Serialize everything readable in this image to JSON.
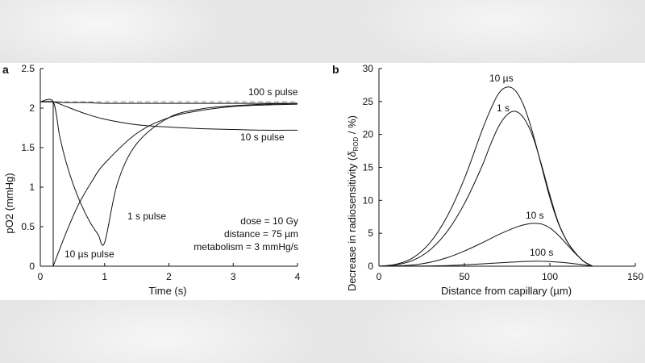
{
  "colors": {
    "line": "#111111",
    "dashed": "#888888",
    "figure_bg": "#ffffff"
  },
  "chart_data": [
    {
      "panel_label": "a",
      "type": "line",
      "xlabel": "Time (s)",
      "ylabel": "pO2 (mmHg)",
      "xlim": [
        0,
        4
      ],
      "ylim": [
        0,
        2.5
      ],
      "xticks": [
        "0",
        "1",
        "2",
        "3",
        "4"
      ],
      "xtick_values": [
        0,
        1,
        2,
        3,
        4
      ],
      "yticks": [
        "0",
        "0.5",
        "1",
        "1.5",
        "2",
        "2.5"
      ],
      "ytick_values": [
        0,
        0.5,
        1,
        1.5,
        2,
        2.5
      ],
      "annotations": [
        "dose = 10 Gy",
        "distance = 75 µm",
        "metabolism = 3 mmHg/s"
      ],
      "series": [
        {
          "name": "100 s pulse",
          "dashed": true,
          "x": [
            0,
            4
          ],
          "y": [
            2.08,
            2.08
          ]
        },
        {
          "name": "100 s pulse",
          "dashed": false,
          "x": [
            0,
            0.2,
            0.4,
            0.7,
            1.0,
            1.5,
            2.0,
            3.0,
            4.0
          ],
          "y": [
            2.08,
            2.08,
            2.07,
            2.07,
            2.06,
            2.06,
            2.06,
            2.06,
            2.06
          ]
        },
        {
          "name": "10 s pulse",
          "dashed": false,
          "x": [
            0,
            0.2,
            0.4,
            0.7,
            1.0,
            1.5,
            2.0,
            2.5,
            3.0,
            3.5,
            4.0
          ],
          "y": [
            2.08,
            2.08,
            2.02,
            1.93,
            1.86,
            1.79,
            1.76,
            1.74,
            1.73,
            1.72,
            1.72
          ]
        },
        {
          "name": "1 s pulse",
          "dashed": false,
          "x": [
            0,
            0.2,
            0.3,
            0.4,
            0.5,
            0.6,
            0.7,
            0.8,
            0.9,
            1.0,
            1.2,
            1.5,
            2.0,
            2.5,
            3.0,
            3.5,
            4.0
          ],
          "y": [
            2.08,
            2.08,
            1.65,
            1.32,
            1.06,
            0.85,
            0.67,
            0.52,
            0.4,
            0.3,
            1.05,
            1.55,
            1.88,
            1.99,
            2.03,
            2.05,
            2.06
          ]
        },
        {
          "name": "10 µs pulse",
          "dashed": false,
          "x": [
            0,
            0.2,
            0.2,
            0.4,
            0.6,
            0.8,
            1.0,
            1.5,
            2.0,
            2.5,
            3.0,
            3.5,
            4.0
          ],
          "y": [
            2.08,
            2.08,
            0.0,
            0.42,
            0.79,
            1.07,
            1.3,
            1.68,
            1.88,
            1.97,
            2.02,
            2.04,
            2.05
          ]
        }
      ],
      "series_labels": [
        "100 s pulse",
        "10 s pulse",
        "1 s pulse",
        "10 µs pulse"
      ]
    },
    {
      "panel_label": "b",
      "type": "line",
      "xlabel": "Distance from capillary (µm)",
      "ylabel_prefix": "Decrease in radiosensitivity (",
      "ylabel_symbol": "δ",
      "ylabel_subscript": "ROD",
      "ylabel_suffix": " / %)",
      "xlim": [
        0,
        150
      ],
      "ylim": [
        0,
        30
      ],
      "xticks": [
        "0",
        "50",
        "100",
        "150"
      ],
      "xtick_values": [
        0,
        50,
        100,
        150
      ],
      "yticks": [
        "0",
        "5",
        "10",
        "15",
        "20",
        "25",
        "30"
      ],
      "ytick_values": [
        0,
        5,
        10,
        15,
        20,
        25,
        30
      ],
      "series": [
        {
          "name": "10 µs",
          "x": [
            0,
            10,
            20,
            30,
            40,
            50,
            60,
            65,
            70,
            75,
            80,
            85,
            90,
            95,
            100,
            105,
            110,
            115,
            120,
            125
          ],
          "y": [
            0,
            0.3,
            1.3,
            3.6,
            7.6,
            13.3,
            20.4,
            23.6,
            26.2,
            27.2,
            26.6,
            24.2,
            20.2,
            15.3,
            10.4,
            6.5,
            3.8,
            2.0,
            0.7,
            0
          ]
        },
        {
          "name": "1 s",
          "x": [
            0,
            10,
            20,
            30,
            40,
            50,
            60,
            65,
            70,
            75,
            80,
            85,
            90,
            95,
            100,
            105,
            110,
            115,
            120,
            125
          ],
          "y": [
            0,
            0.2,
            0.9,
            2.5,
            5.3,
            9.5,
            15.0,
            18.3,
            21.2,
            23.0,
            23.5,
            22.4,
            19.7,
            15.5,
            10.8,
            6.6,
            3.8,
            2.0,
            0.7,
            0
          ]
        },
        {
          "name": "10 s",
          "x": [
            0,
            10,
            20,
            30,
            40,
            50,
            60,
            70,
            80,
            85,
            90,
            95,
            100,
            105,
            110,
            115,
            120,
            125
          ],
          "y": [
            0,
            0.05,
            0.2,
            0.6,
            1.3,
            2.3,
            3.5,
            4.8,
            5.9,
            6.3,
            6.5,
            6.4,
            5.8,
            4.7,
            3.3,
            1.9,
            0.7,
            0
          ]
        },
        {
          "name": "100 s",
          "x": [
            0,
            20,
            40,
            60,
            80,
            90,
            95,
            100,
            110,
            120,
            125
          ],
          "y": [
            0,
            0.02,
            0.1,
            0.35,
            0.65,
            0.75,
            0.75,
            0.7,
            0.5,
            0.2,
            0
          ]
        }
      ],
      "series_labels": [
        "10 µs",
        "1 s",
        "10 s",
        "100 s"
      ]
    }
  ]
}
